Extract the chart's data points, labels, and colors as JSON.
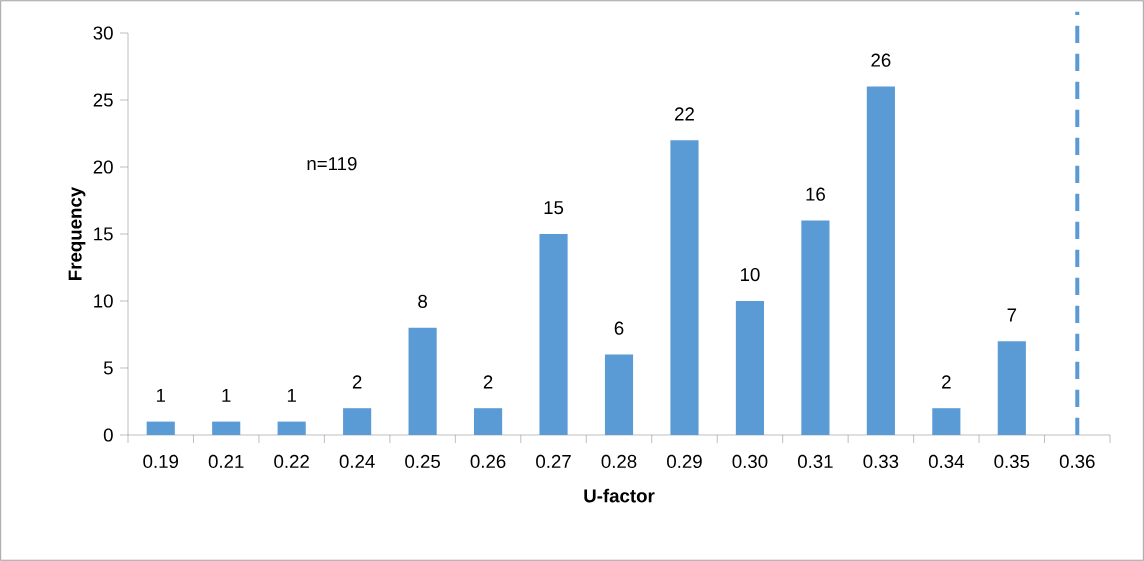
{
  "chart_data": {
    "type": "bar",
    "xlabel": "U-factor",
    "ylabel": "Frequency",
    "categories": [
      "0.19",
      "0.21",
      "0.22",
      "0.24",
      "0.25",
      "0.26",
      "0.27",
      "0.28",
      "0.29",
      "0.30",
      "0.31",
      "0.33",
      "0.34",
      "0.35",
      "0.36"
    ],
    "values": [
      1,
      1,
      1,
      2,
      8,
      2,
      15,
      6,
      22,
      10,
      16,
      26,
      2,
      7,
      null
    ],
    "color": "#5b9bd5",
    "data_labels": true,
    "ylim": [
      0,
      30
    ],
    "yticks": [
      0,
      5,
      10,
      15,
      20,
      25,
      30
    ],
    "grid": false,
    "ref_lines": [
      {
        "axis": "x",
        "value": "0.36",
        "color": "#5b9bd5",
        "line_style": "dashed"
      }
    ],
    "annotations": [
      "n=119"
    ]
  }
}
